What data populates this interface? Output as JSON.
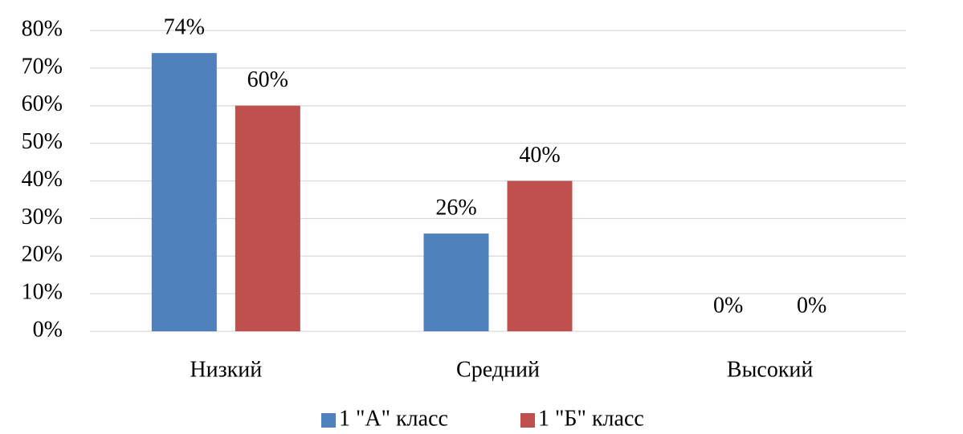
{
  "chart_data": {
    "type": "bar",
    "categories": [
      "Низкий",
      "Средний",
      "Высокий"
    ],
    "series": [
      {
        "name": "1 \"А\" класс",
        "color": "#4f81bd",
        "values": [
          74,
          26,
          0
        ],
        "value_labels": [
          "74%",
          "26%",
          "0%"
        ]
      },
      {
        "name": "1 \"Б\" класс",
        "color": "#c0504d",
        "values": [
          60,
          40,
          0
        ],
        "value_labels": [
          "60%",
          "40%",
          "0%"
        ]
      }
    ],
    "ylim": [
      0,
      80
    ],
    "yticks": [
      {
        "value": 0,
        "label": "0%"
      },
      {
        "value": 10,
        "label": "10%"
      },
      {
        "value": 20,
        "label": "20%"
      },
      {
        "value": 30,
        "label": "30%"
      },
      {
        "value": 40,
        "label": "40%"
      },
      {
        "value": 50,
        "label": "50%"
      },
      {
        "value": 60,
        "label": "60%"
      },
      {
        "value": 70,
        "label": "70%"
      },
      {
        "value": 80,
        "label": "80%"
      }
    ],
    "grid": true,
    "legend": "bottom"
  }
}
